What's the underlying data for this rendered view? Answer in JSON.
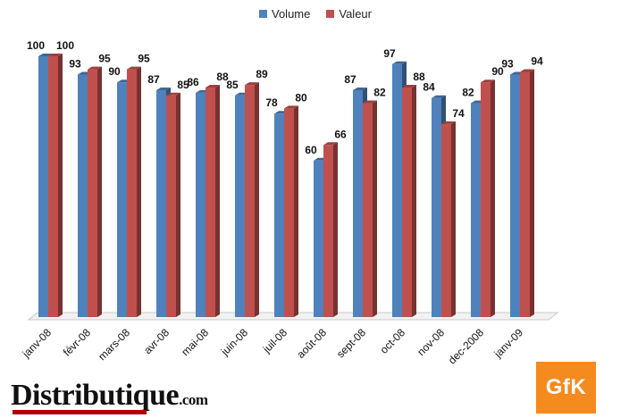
{
  "chart_data": {
    "type": "bar",
    "categories": [
      "janv-08",
      "févr-08",
      "mars-08",
      "avr-08",
      "mai-08",
      "juin-08",
      "juil-08",
      "août-08",
      "sept-08",
      "oct-08",
      "nov-08",
      "dec-2008",
      "janv-09"
    ],
    "series": [
      {
        "name": "Volume",
        "color": "#4f81bd",
        "values": [
          100,
          93,
          90,
          87,
          86,
          85,
          78,
          60,
          87,
          97,
          84,
          82,
          93
        ]
      },
      {
        "name": "Valeur",
        "color": "#c0504d",
        "values": [
          100,
          95,
          95,
          85,
          88,
          89,
          80,
          66,
          82,
          88,
          74,
          90,
          94
        ]
      }
    ],
    "ylim": [
      0,
      100
    ],
    "grid": false,
    "legend": "top-center"
  },
  "brand": {
    "name": "Distributique",
    "suffix": ".com"
  },
  "logo": {
    "text": "GfK",
    "color": "#f58a1f"
  }
}
